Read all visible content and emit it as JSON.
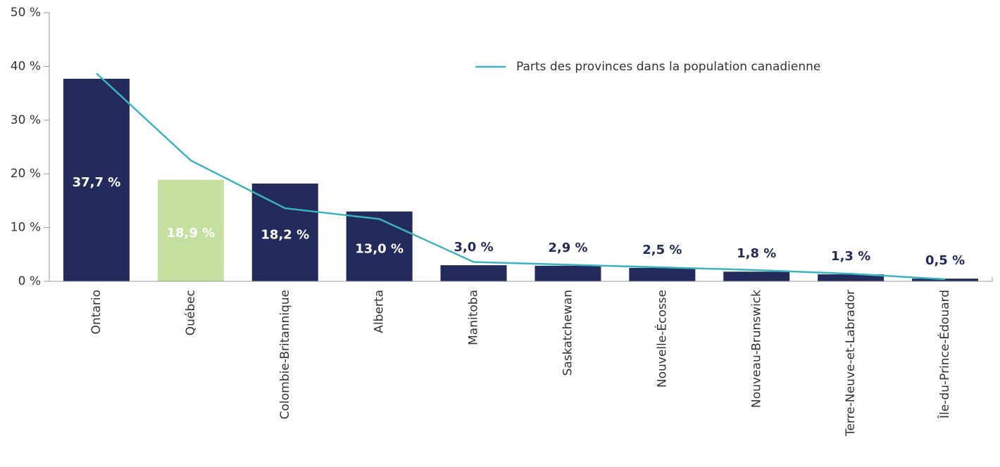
{
  "chart_data": {
    "type": "bar_line",
    "categories": [
      "Ontario",
      "Québec",
      "Colombie-Britannique",
      "Alberta",
      "Manitoba",
      "Saskatchewan",
      "Nouvelle-Écosse",
      "Nouveau-Brunswick",
      "Terre-Neuve-et-Labrador",
      "Île-du-Prince-Édouard"
    ],
    "series": [
      {
        "type": "bar",
        "colors": [
          "#232a5c",
          "#c5df9f",
          "#232a5c",
          "#232a5c",
          "#232a5c",
          "#232a5c",
          "#232a5c",
          "#232a5c",
          "#232a5c",
          "#232a5c"
        ],
        "values": [
          37.7,
          18.9,
          18.2,
          13.0,
          3.0,
          2.9,
          2.5,
          1.8,
          1.3,
          0.5
        ],
        "value_labels": [
          "37,7 %",
          "18,9 %",
          "18,2 %",
          "13,0 %",
          "3,0 %",
          "2,9 %",
          "2,5 %",
          "1,8 %",
          "1,3 %",
          "0,5 %"
        ]
      },
      {
        "type": "line",
        "name": "Parts des provinces dans la population canadienne",
        "color": "#3cb4c0",
        "values": [
          38.7,
          22.5,
          13.6,
          11.6,
          3.6,
          3.1,
          2.6,
          2.1,
          1.4,
          0.4
        ]
      }
    ],
    "ylim": [
      0,
      50
    ],
    "yticks": [
      {
        "value": 0,
        "label": "0 %"
      },
      {
        "value": 10,
        "label": "10 %"
      },
      {
        "value": 20,
        "label": "20 %"
      },
      {
        "value": 30,
        "label": "30 %"
      },
      {
        "value": 40,
        "label": "40 %"
      },
      {
        "value": 50,
        "label": "50 %"
      }
    ],
    "legend": "top-right"
  }
}
